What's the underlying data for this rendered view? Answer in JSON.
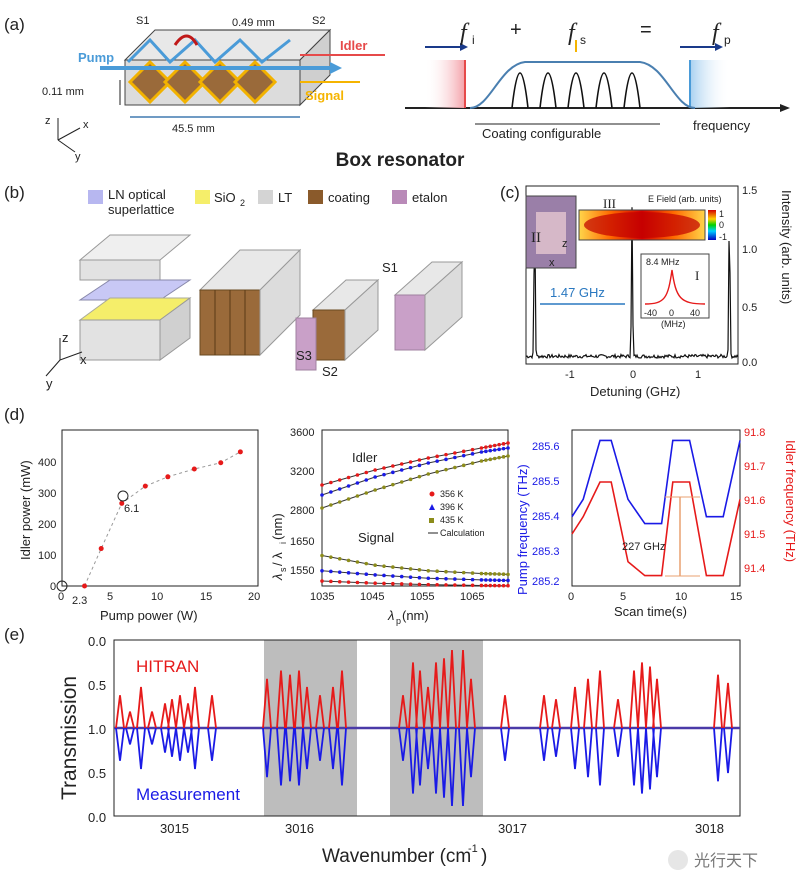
{
  "panel_a": {
    "letter": "(a)",
    "labels": {
      "s1": "S1",
      "s2": "S2",
      "dim_top": "0.49 mm",
      "dim_height": "0.11 mm",
      "dim_len": "45.5 mm",
      "pump": "Pump",
      "idler": "Idler",
      "signal": "Signal",
      "ax_z": "z",
      "ax_x": "x",
      "ax_y": "y"
    },
    "spectrum": {
      "fi": "f",
      "fi_sub": "i",
      "plus": "+",
      "fs": "f",
      "fs_sub": "s",
      "eq": "=",
      "fp": "f",
      "fp_sub": "p",
      "coating": "Coating configurable",
      "frequency": "frequency"
    },
    "title": "Box resonator"
  },
  "panel_b": {
    "letter": "(b)",
    "legend": [
      "LN optical",
      "superlattice",
      "SiO",
      "2",
      "LT",
      "coating",
      "etalon"
    ],
    "labels": {
      "s1": "S1",
      "s2": "S2",
      "s3": "S3",
      "ax_z": "z",
      "ax_x": "x",
      "ax_y": "y"
    }
  },
  "panel_c": {
    "letter": "(c)",
    "efield": "E Field (arb. units)",
    "cb_top": "1",
    "cb_mid": "0",
    "cb_bot": "-1",
    "rom3": "III",
    "rom2": "II",
    "rom1": "I",
    "ax_z": "z",
    "ax_x": "x",
    "fsr": "1.47 GHz",
    "inset_val": "8.4 MHz",
    "inset_xlabel": "(MHz)",
    "inset_ticks": [
      "-40",
      "0",
      "40"
    ],
    "xlabel": "Detuning (GHz)",
    "ylabel": "Intensity (arb. units)",
    "xticks": [
      "-1",
      "0",
      "1"
    ],
    "yticks": [
      "0.0",
      "0.5",
      "1.0",
      "1.5"
    ]
  },
  "panel_d": {
    "letter": "(d)",
    "left": {
      "xlabel": "Pump power (W)",
      "ylabel": "Idler power (mW)",
      "xticks": [
        "0",
        "5",
        "10",
        "15",
        "20"
      ],
      "yticks": [
        "0",
        "100",
        "200",
        "300",
        "400"
      ],
      "threshold_label": "2.3",
      "knee_label": "6.1"
    },
    "mid": {
      "xlabel": "λ",
      "xlabel_sub": "p",
      "xlabel_unit": " (nm)",
      "ylabel": "λ",
      "ylabel_s": "s",
      "ylabel_mid": " / λ",
      "ylabel_i": "i",
      "ylabel_unit": " (nm)",
      "idler": "Idler",
      "signal": "Signal",
      "xticks": [
        "1035",
        "1045",
        "1055",
        "1065"
      ],
      "yticks_top": [
        "3600",
        "3200",
        "2800"
      ],
      "yticks_bot": [
        "1650",
        "1550"
      ],
      "legend": [
        "356 K",
        "396 K",
        "435 K",
        "Calculation"
      ]
    },
    "right": {
      "xlabel": "Scan time(s)",
      "ylabel_left": "Pump frequency (THz)",
      "ylabel_right": "Idler frequency (THz)",
      "xticks": [
        "0",
        "5",
        "10",
        "15"
      ],
      "yticks_left": [
        "285.6",
        "285.5",
        "285.4",
        "285.3",
        "285.2"
      ],
      "yticks_right": [
        "91.8",
        "91.7",
        "91.6",
        "91.5",
        "91.4"
      ],
      "span_label": "227 GHz"
    }
  },
  "panel_e": {
    "letter": "(e)",
    "hitran": "HITRAN",
    "measurement": "Measurement",
    "xlabel": "Wavenumber (cm",
    "xlabel_sup": "-1",
    "xlabel_end": ")",
    "ylabel": "Transmission",
    "xticks": [
      "3015",
      "3016",
      "3017",
      "3018"
    ],
    "yticks": [
      "0.0",
      "0.5",
      "1.0",
      "0.5",
      "0.0"
    ]
  },
  "watermark": "光行天下",
  "colors": {
    "blue": "#1a1ae6",
    "red": "#e61a1a",
    "pump": "#4a9bd8",
    "signal": "#f5b400",
    "idler": "#e64a4a",
    "gray": "#b8b8b8",
    "olive": "#8c8c1a",
    "coating": "#8a5a2b",
    "etalon": "#b98ab8"
  },
  "chart_data": [
    {
      "type": "scatter",
      "xlabel": "Pump power (W)",
      "ylabel": "Idler power (mW)",
      "x": [
        2.3,
        4,
        6.1,
        8.5,
        10.8,
        13.5,
        16.2,
        18.2
      ],
      "y": [
        0,
        120,
        265,
        320,
        350,
        375,
        395,
        430
      ],
      "xlim": [
        0,
        20
      ],
      "ylim": [
        0,
        500
      ]
    },
    {
      "type": "line",
      "xlabel": "λp (nm)",
      "ylabel": "λs / λi (nm)",
      "x": [
        1035,
        1045,
        1055,
        1065,
        1070
      ],
      "series": [
        {
          "name": "356 K",
          "idler": [
            3050,
            3200,
            3320,
            3420,
            3470
          ],
          "signal": [
            1548,
            1540,
            1535,
            1532,
            1531
          ]
        },
        {
          "name": "396 K",
          "idler": [
            2950,
            3130,
            3270,
            3380,
            3420
          ],
          "signal": [
            1585,
            1570,
            1558,
            1552,
            1550
          ]
        },
        {
          "name": "435 K",
          "idler": [
            2820,
            3000,
            3160,
            3290,
            3340
          ],
          "signal": [
            1640,
            1605,
            1585,
            1575,
            1572
          ]
        }
      ]
    },
    {
      "type": "line",
      "xlabel": "Scan time(s)",
      "ylabel": "Pump frequency (THz)",
      "series": [
        {
          "name": "Pump frequency",
          "x": [
            0,
            1,
            2.5,
            3.5,
            5,
            6.5,
            8,
            9,
            10.5,
            12,
            13.5,
            15
          ],
          "y": [
            285.4,
            285.45,
            285.62,
            285.62,
            285.45,
            285.38,
            285.38,
            285.62,
            285.62,
            285.4,
            285.4,
            285.62
          ]
        },
        {
          "name": "Idler frequency",
          "x": [
            0,
            1,
            2.5,
            3.5,
            5,
            6.5,
            8,
            9,
            10.5,
            12,
            13.5,
            15
          ],
          "y": [
            91.5,
            91.55,
            91.65,
            91.65,
            91.42,
            91.38,
            91.38,
            91.65,
            91.65,
            91.38,
            91.38,
            91.6
          ]
        }
      ]
    }
  ]
}
